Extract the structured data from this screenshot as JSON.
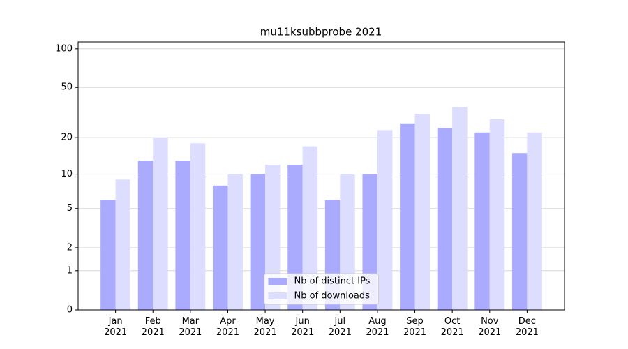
{
  "chart_data": {
    "type": "bar",
    "title": "mu11ksubbprobe 2021",
    "categories": [
      "Jan\n2021",
      "Feb\n2021",
      "Mar\n2021",
      "Apr\n2021",
      "May\n2021",
      "Jun\n2021",
      "Jul\n2021",
      "Aug\n2021",
      "Sep\n2021",
      "Oct\n2021",
      "Nov\n2021",
      "Dec\n2021"
    ],
    "series": [
      {
        "name": "Nb of distinct IPs",
        "color": "#aaaaff",
        "values": [
          6,
          13,
          13,
          8,
          10,
          12,
          6,
          10,
          26,
          24,
          22,
          15
        ]
      },
      {
        "name": "Nb of downloads",
        "color": "#ddddff",
        "values": [
          9,
          20,
          18,
          10,
          12,
          17,
          10,
          23,
          31,
          35,
          28,
          22
        ]
      }
    ],
    "ylim": [
      0,
      113
    ],
    "yticks": [
      0,
      1,
      2,
      5,
      10,
      20,
      50,
      100
    ],
    "y_scale": "log1p",
    "grid": true,
    "legend": "lower center"
  }
}
